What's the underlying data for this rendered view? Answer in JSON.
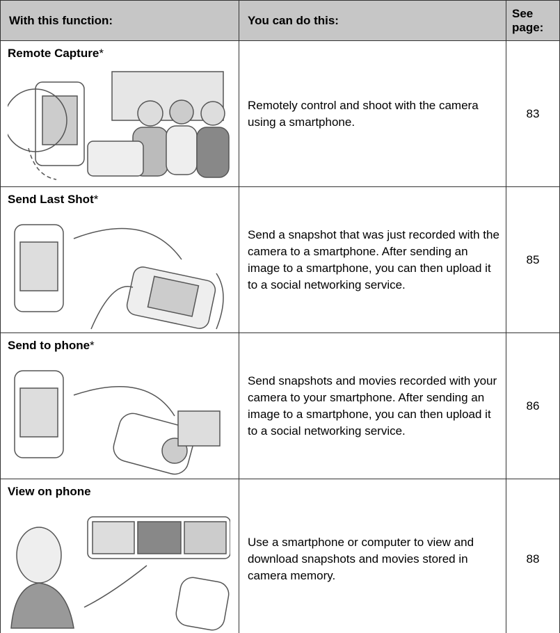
{
  "table": {
    "header": [
      "With this function:",
      "You can do this:",
      "See page:"
    ],
    "rows": [
      {
        "name": "Remote Capture",
        "mark": "*",
        "description": "Remotely control and shoot with the camera using a smartphone.",
        "page": "83"
      },
      {
        "name": "Send Last Shot",
        "mark": "*",
        "description": "Send a snapshot that was just recorded with the camera to a smartphone. After sending an image to a smartphone, you can then upload it to a social networking service.",
        "page": "85"
      },
      {
        "name": "Send to phone",
        "mark": "*",
        "description": "Send snapshots and movies recorded with your camera to your smartphone. After sending an image to a smartphone, you can then upload it to a social networking service.",
        "page": "86"
      },
      {
        "name": "View on phone",
        "description": "Use a smartphone or computer to view and download snapshots and movies stored in camera memory.",
        "page": "88"
      }
    ]
  }
}
